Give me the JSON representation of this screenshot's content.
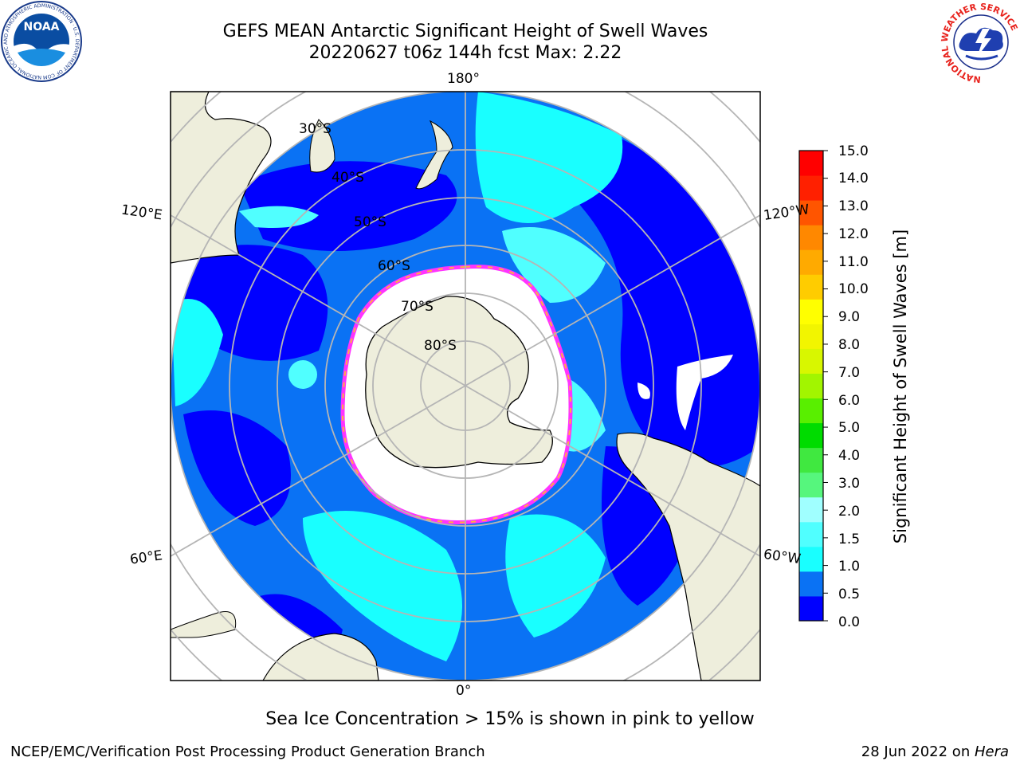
{
  "title_line1": "GEFS MEAN Antarctic Significant Height of Swell Waves",
  "title_line2": "20220627 t06z 144h fcst   Max: 2.22",
  "map": {
    "longitude_labels": [
      "180°",
      "120°E",
      "120°W",
      "60°E",
      "60°W",
      "0°"
    ],
    "latitude_labels": [
      "30°S",
      "40°S",
      "50°S",
      "60°S",
      "70°S",
      "80°S"
    ],
    "ocean_colors": {
      "low": "#0000ff",
      "mid": "#0a72f4",
      "high": "#19ffff",
      "higher": "#50ffff"
    },
    "land_color": "#eeeedc",
    "ice_color": "#ffffff",
    "ice_edge_colors": [
      "#ff33ff",
      "#ffb042",
      "#ff8de6"
    ]
  },
  "colorbar": {
    "label": "Significant Height of Swell Waves [m]",
    "ticks": [
      "15.0",
      "14.0",
      "13.0",
      "12.0",
      "11.0",
      "10.0",
      "9.0",
      "8.0",
      "7.0",
      "6.0",
      "5.0",
      "4.0",
      "3.0",
      "2.0",
      "1.5",
      "1.0",
      "0.5",
      "0.0"
    ],
    "colors": [
      "#0000ff",
      "#0a72f4",
      "#19ffff",
      "#50ffff",
      "#a0ffff",
      "#56f67d",
      "#40e840",
      "#00dc00",
      "#59ef00",
      "#a2f500",
      "#d8f700",
      "#f2f500",
      "#ffff00",
      "#ffcc00",
      "#ffaa00",
      "#ff8800",
      "#ff5500",
      "#ff2000",
      "#ff0000"
    ]
  },
  "caption": "Sea Ice Concentration > 15% is shown in pink to yellow",
  "footer": {
    "left": "NCEP/EMC/Verification Post Processing Product Generation Branch",
    "right_prefix": "28 Jun 2022 on ",
    "right_system": "Hera"
  },
  "logos": {
    "left_text": "NOAA",
    "left_ring_text": "NATIONAL OCEANIC AND ATMOSPHERIC ADMINISTRATION · U.S. DEPARTMENT OF COMMERCE",
    "right_ring_text": "NATIONAL WEATHER SERVICE"
  }
}
